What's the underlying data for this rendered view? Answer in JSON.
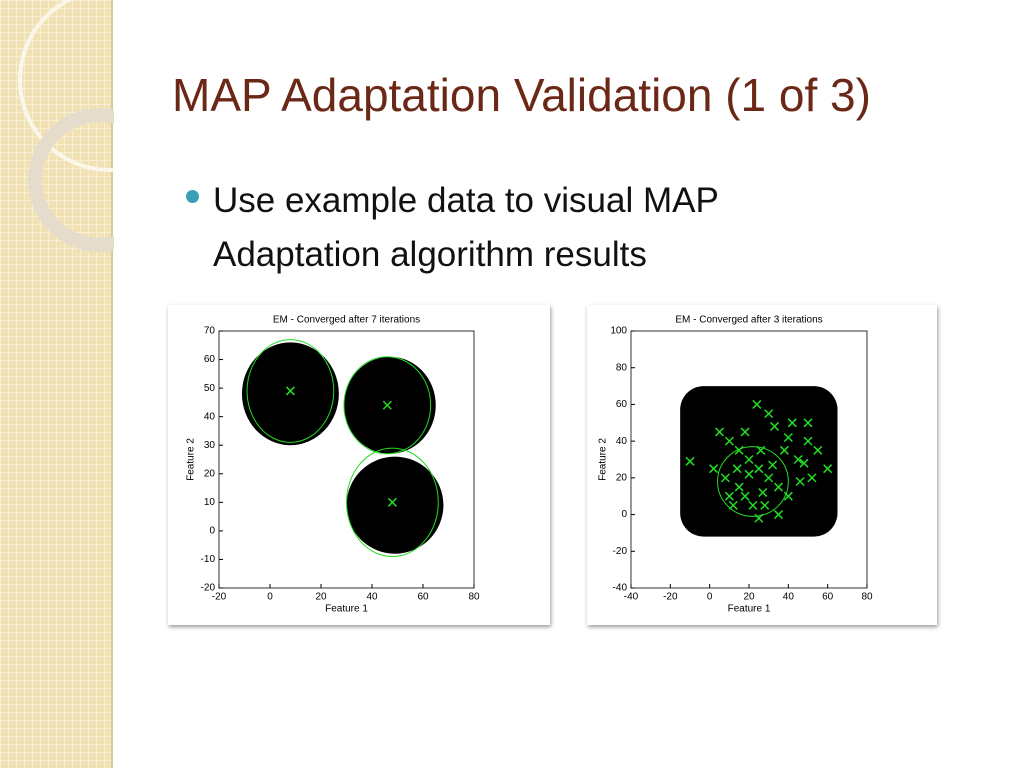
{
  "slide": {
    "title": "MAP Adaptation Validation (1 of 3)",
    "bullet": "Use example data to visual MAP Adaptation algorithm results"
  },
  "chart_data": [
    {
      "type": "scatter",
      "title": "EM - Converged after 7 iterations",
      "x_label": "Feature 1",
      "y_label": "Feature 2",
      "xlim": [
        -20,
        80
      ],
      "ylim": [
        -20,
        70
      ],
      "xticks": [
        -20,
        0,
        20,
        40,
        60,
        80
      ],
      "yticks": [
        -20,
        -10,
        0,
        10,
        20,
        30,
        40,
        50,
        60,
        70
      ],
      "cloud_shape": "ellipse",
      "cloud_color": "#000000",
      "fit_color": "#22dd22",
      "clouds": [
        {
          "x": 8,
          "y": 48,
          "rx": 19,
          "ry": 18
        },
        {
          "x": 47,
          "y": 44,
          "rx": 18,
          "ry": 17
        },
        {
          "x": 49,
          "y": 9,
          "rx": 19,
          "ry": 17
        }
      ],
      "components": [
        {
          "x": 8,
          "y": 49,
          "rx": 17,
          "ry": 18
        },
        {
          "x": 46,
          "y": 44,
          "rx": 17,
          "ry": 17
        },
        {
          "x": 48,
          "y": 10,
          "rx": 18,
          "ry": 19
        }
      ]
    },
    {
      "type": "scatter",
      "title": "EM - Converged after 3 iterations",
      "x_label": "Feature 1",
      "y_label": "Feature 2",
      "xlim": [
        -40,
        80
      ],
      "ylim": [
        -40,
        100
      ],
      "xticks": [
        -40,
        -20,
        0,
        20,
        40,
        60,
        80
      ],
      "yticks": [
        -40,
        -20,
        0,
        20,
        40,
        60,
        80,
        100
      ],
      "cloud_shape": "square",
      "cloud_color": "#000000",
      "fit_color": "#22dd22",
      "clouds": [
        {
          "x": 25,
          "y": 29,
          "rx": 40,
          "ry": 41
        }
      ],
      "components": [
        {
          "x": 22,
          "y": 18,
          "rx": 18,
          "ry": 19
        }
      ],
      "points": {
        "x": [
          -10,
          5,
          10,
          15,
          20,
          25,
          30,
          35,
          40,
          18,
          12,
          28,
          45,
          50,
          48,
          42,
          33,
          24,
          30,
          8,
          2,
          15,
          20,
          26,
          38,
          52,
          55,
          60,
          35,
          25,
          14,
          18,
          27,
          32,
          46,
          10,
          22,
          40,
          50
        ],
        "y": [
          29,
          45,
          40,
          35,
          30,
          25,
          20,
          15,
          10,
          10,
          5,
          5,
          30,
          40,
          28,
          50,
          48,
          60,
          55,
          20,
          25,
          15,
          22,
          35,
          35,
          20,
          35,
          25,
          0,
          -2,
          25,
          45,
          12,
          27,
          18,
          10,
          5,
          42,
          50
        ]
      }
    }
  ]
}
